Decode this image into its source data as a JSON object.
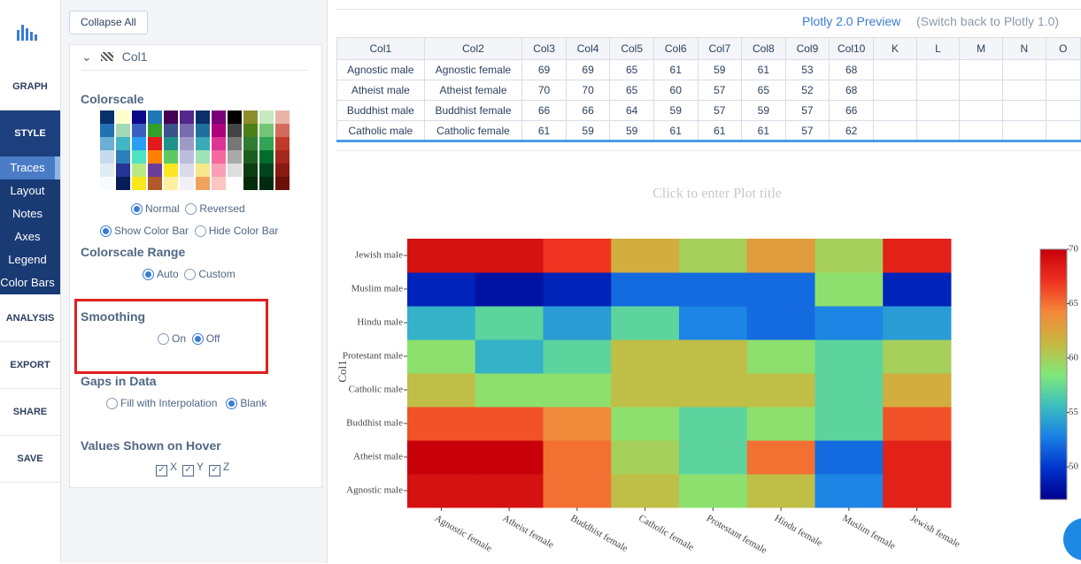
{
  "nav": {
    "items": [
      "GRAPH",
      "STYLE",
      "ANALYSIS",
      "EXPORT",
      "SHARE",
      "SAVE"
    ],
    "style_sub": [
      "Traces",
      "Layout",
      "Notes",
      "Axes",
      "Legend",
      "Color Bars"
    ]
  },
  "panel": {
    "collapse": "Collapse All",
    "trace": "Col1",
    "colorscale_label": "Colorscale",
    "colorscale_dir": [
      "Normal",
      "Reversed"
    ],
    "colorbar": [
      "Show Color Bar",
      "Hide Color Bar"
    ],
    "range_label": "Colorscale Range",
    "range": [
      "Auto",
      "Custom"
    ],
    "smoothing_label": "Smoothing",
    "smoothing": [
      "On",
      "Off"
    ],
    "gaps_label": "Gaps in Data",
    "gaps": [
      "Fill with Interpolation",
      "Blank"
    ],
    "hover_label": "Values Shown on Hover",
    "hover": [
      "X",
      "Y",
      "Z"
    ]
  },
  "header": {
    "preview": "Plotly 2.0 Preview",
    "switch": "(Switch back to Plotly 1.0)"
  },
  "table": {
    "columns": [
      "Col1",
      "Col2",
      "Col3",
      "Col4",
      "Col5",
      "Col6",
      "Col7",
      "Col8",
      "Col9",
      "Col10",
      "K",
      "L",
      "M",
      "N",
      "O"
    ],
    "rows": [
      [
        "Agnostic male",
        "Agnostic female",
        69,
        69,
        65,
        61,
        59,
        61,
        53,
        68
      ],
      [
        "Atheist male",
        "Atheist female",
        70,
        70,
        65,
        60,
        57,
        65,
        52,
        68
      ],
      [
        "Buddhist male",
        "Buddhist female",
        66,
        66,
        64,
        59,
        57,
        59,
        57,
        66
      ],
      [
        "Catholic male",
        "Catholic female",
        61,
        59,
        59,
        61,
        61,
        61,
        57,
        62
      ]
    ]
  },
  "chart_data": {
    "type": "heatmap",
    "title": "Click to enter Plot title",
    "y_label": "Col1",
    "x": [
      "Agnostic female",
      "Atheist female",
      "Buddhist female",
      "Catholic female",
      "Protestant female",
      "Hindu female",
      "Muslim female",
      "Jewish female"
    ],
    "y": [
      "Agnostic male",
      "Atheist male",
      "Buddhist male",
      "Catholic male",
      "Protestant male",
      "Hindu male",
      "Muslim male",
      "Jewish male"
    ],
    "z": [
      [
        69,
        69,
        65,
        61,
        59,
        61,
        53,
        68
      ],
      [
        70,
        70,
        65,
        60,
        57,
        65,
        52,
        68
      ],
      [
        66,
        66,
        64,
        59,
        57,
        59,
        57,
        66
      ],
      [
        61,
        59,
        59,
        61,
        61,
        61,
        57,
        62
      ],
      [
        59,
        55,
        57,
        61,
        61,
        59,
        57,
        60
      ],
      [
        55,
        57,
        54,
        57,
        53,
        52,
        53,
        54
      ],
      [
        49,
        48,
        49,
        52,
        52,
        52,
        59,
        49
      ],
      [
        69,
        69,
        67,
        62,
        60,
        63,
        60,
        68
      ]
    ],
    "zlim": [
      47,
      70
    ],
    "zticks": [
      50,
      55,
      60,
      65,
      70
    ],
    "colorscale": [
      "#00008c",
      "#0033cc",
      "#1a7fe6",
      "#3cbfc0",
      "#80e878",
      "#c8b840",
      "#f5873a",
      "#ee3020",
      "#c8000a"
    ]
  }
}
